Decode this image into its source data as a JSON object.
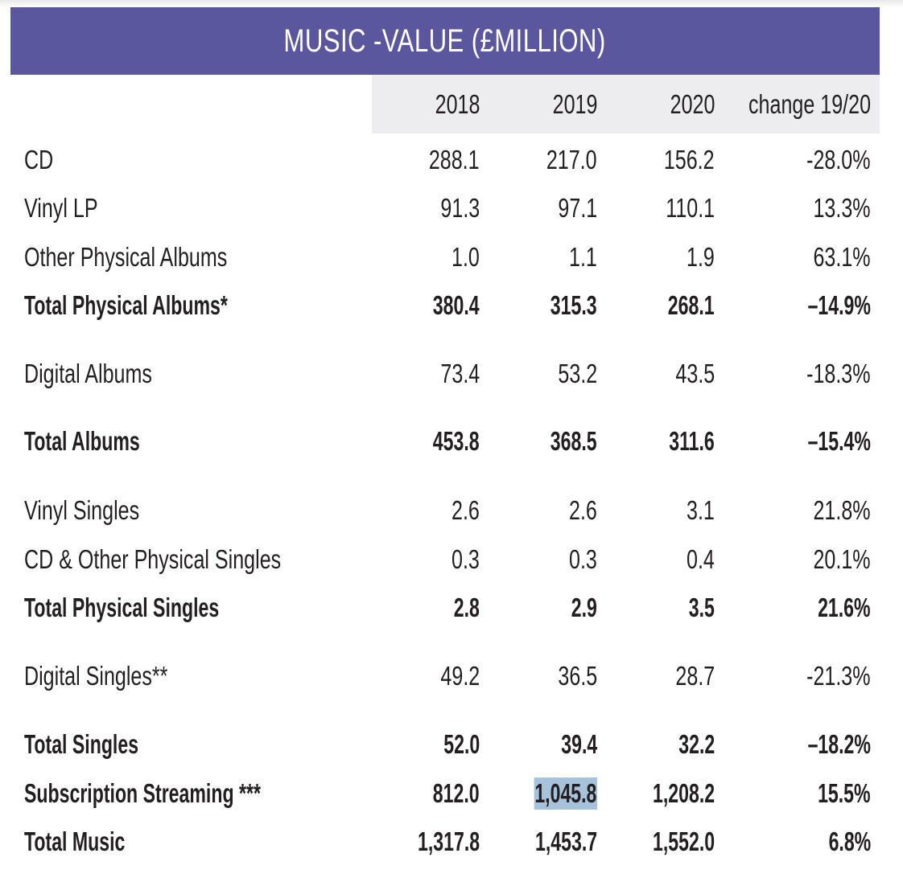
{
  "title": "MUSIC -VALUE (£MILLION)",
  "columns": [
    "2018",
    "2019",
    "2020",
    "change 19/20"
  ],
  "colors": {
    "title_band": "#5b579e",
    "header_band": "#ededef",
    "selection": "#a7c3dc"
  },
  "selected_cell": "1,045.8",
  "rows": [
    {
      "label": "CD",
      "v2018": "288.1",
      "v2019": "217.0",
      "v2020": "156.2",
      "change": "-28.0%",
      "bold": false
    },
    {
      "label": "Vinyl LP",
      "v2018": "91.3",
      "v2019": "97.1",
      "v2020": "110.1",
      "change": "13.3%",
      "bold": false
    },
    {
      "label": "Other Physical Albums",
      "v2018": "1.0",
      "v2019": "1.1",
      "v2020": "1.9",
      "change": "63.1%",
      "bold": false
    },
    {
      "label": "Total Physical Albums*",
      "v2018": "380.4",
      "v2019": "315.3",
      "v2020": "268.1",
      "change": "–14.9%",
      "bold": true
    },
    {
      "label": "Digital Albums",
      "v2018": "73.4",
      "v2019": "53.2",
      "v2020": "43.5",
      "change": "-18.3%",
      "bold": false
    },
    {
      "label": "Total Albums",
      "v2018": "453.8",
      "v2019": "368.5",
      "v2020": "311.6",
      "change": "–15.4%",
      "bold": true
    },
    {
      "label": "Vinyl Singles",
      "v2018": "2.6",
      "v2019": "2.6",
      "v2020": "3.1",
      "change": "21.8%",
      "bold": false
    },
    {
      "label": "CD & Other Physical Singles",
      "v2018": "0.3",
      "v2019": "0.3",
      "v2020": "0.4",
      "change": "20.1%",
      "bold": false
    },
    {
      "label": "Total Physical Singles",
      "v2018": "2.8",
      "v2019": "2.9",
      "v2020": "3.5",
      "change": "21.6%",
      "bold": true
    },
    {
      "label": "Digital Singles**",
      "v2018": "49.2",
      "v2019": "36.5",
      "v2020": "28.7",
      "change": "-21.3%",
      "bold": false
    },
    {
      "label": "Total Singles",
      "v2018": "52.0",
      "v2019": "39.4",
      "v2020": "32.2",
      "change": "–18.2%",
      "bold": true
    },
    {
      "label": "Subscription Streaming ***",
      "v2018": "812.0",
      "v2019": "1,045.8",
      "v2020": "1,208.2",
      "change": "15.5%",
      "bold": true
    },
    {
      "label": "Total Music",
      "v2018": "1,317.8",
      "v2019": "1,453.7",
      "v2020": "1,552.0",
      "change": "6.8%",
      "bold": true
    }
  ]
}
